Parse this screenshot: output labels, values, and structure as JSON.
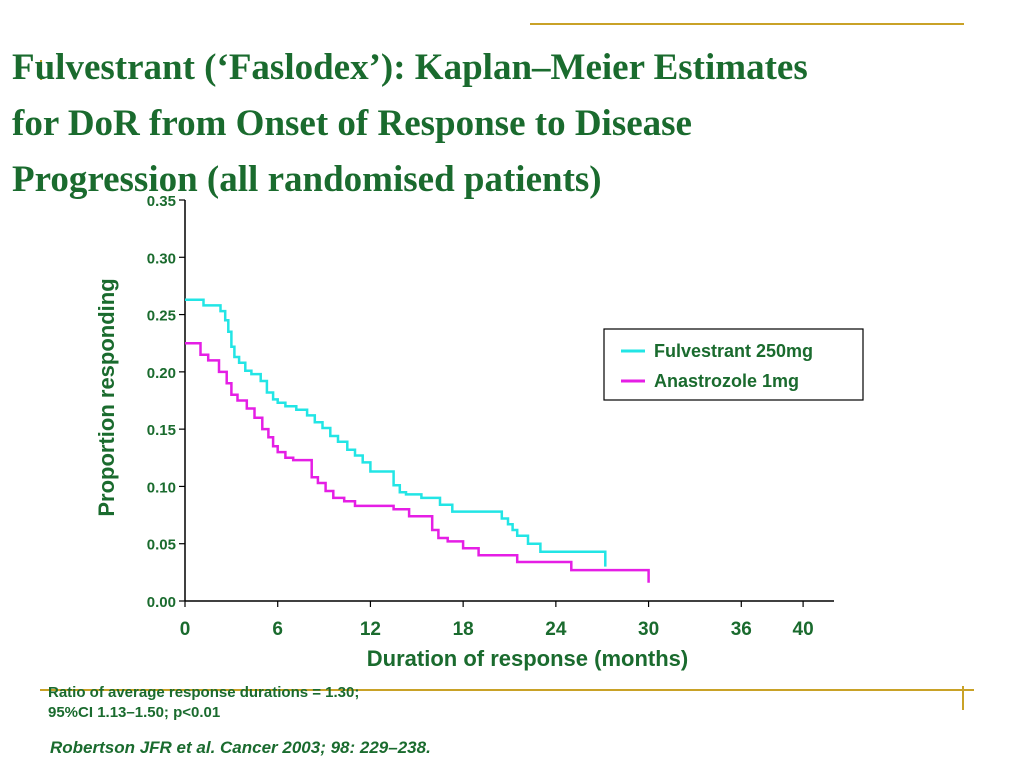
{
  "slide": {
    "title_lines": [
      "Fulvestrant (‘Faslodex’): Kaplan–Meier Estimates",
      "for DoR from Onset of Response to Disease",
      "Progression (all randomised patients)"
    ],
    "note_lines": [
      "Ratio of average response durations = 1.30;",
      "95%CI 1.13–1.50; p<0.01"
    ],
    "reference": "Robertson JFR et al. Cancer 2003; 98: 229–238.",
    "accent_color": "#1a6b2e",
    "rule_color": "#c9a227"
  },
  "chart_data": {
    "type": "line",
    "title": "",
    "xlabel": "Duration of response (months)",
    "ylabel": "Proportion responding",
    "xlim": [
      0,
      42
    ],
    "ylim": [
      0,
      0.35
    ],
    "x_ticks": [
      0,
      6,
      12,
      18,
      24,
      30,
      36,
      40
    ],
    "x_tick_labels": [
      "0",
      "6",
      "12",
      "18",
      "24",
      "30",
      "36",
      "40"
    ],
    "y_ticks": [
      0,
      0.05,
      0.1,
      0.15,
      0.2,
      0.25,
      0.3,
      0.35
    ],
    "y_tick_labels": [
      "0.00",
      "0.05",
      "0.10",
      "0.15",
      "0.20",
      "0.25",
      "0.30",
      "0.35"
    ],
    "grid": false,
    "legend_position": "right",
    "series": [
      {
        "name": "Fulvestrant 250mg",
        "color": "#22e5e5",
        "x": [
          0,
          1.2,
          2.3,
          2.6,
          2.8,
          3.0,
          3.2,
          3.5,
          3.9,
          4.3,
          4.9,
          5.3,
          5.7,
          6.0,
          6.5,
          7.2,
          7.9,
          8.4,
          8.9,
          9.4,
          9.9,
          10.5,
          11.0,
          11.5,
          12.0,
          13.5,
          13.9,
          14.3,
          15.3,
          16.5,
          17.3,
          20.5,
          20.9,
          21.2,
          21.5,
          22.2,
          23.0,
          27.2
        ],
        "y": [
          0.263,
          0.258,
          0.253,
          0.245,
          0.235,
          0.222,
          0.213,
          0.208,
          0.201,
          0.198,
          0.192,
          0.182,
          0.176,
          0.173,
          0.17,
          0.167,
          0.162,
          0.156,
          0.151,
          0.144,
          0.139,
          0.132,
          0.127,
          0.121,
          0.113,
          0.101,
          0.095,
          0.093,
          0.09,
          0.084,
          0.078,
          0.072,
          0.067,
          0.062,
          0.057,
          0.05,
          0.043,
          0.03
        ]
      },
      {
        "name": "Anastrozole 1mg",
        "color": "#e51ee5",
        "x": [
          0,
          1.0,
          1.5,
          2.2,
          2.7,
          3.0,
          3.4,
          4.0,
          4.5,
          5.0,
          5.4,
          5.7,
          6.0,
          6.5,
          7.0,
          8.2,
          8.6,
          9.1,
          9.6,
          10.3,
          11.0,
          13.5,
          14.5,
          16.0,
          16.4,
          17.0,
          18.0,
          19.0,
          21.5,
          25.0,
          30.0
        ],
        "y": [
          0.225,
          0.215,
          0.21,
          0.2,
          0.19,
          0.18,
          0.175,
          0.168,
          0.16,
          0.15,
          0.143,
          0.135,
          0.13,
          0.125,
          0.123,
          0.108,
          0.103,
          0.096,
          0.09,
          0.087,
          0.083,
          0.08,
          0.074,
          0.062,
          0.055,
          0.052,
          0.046,
          0.04,
          0.034,
          0.027,
          0.016
        ]
      }
    ]
  }
}
